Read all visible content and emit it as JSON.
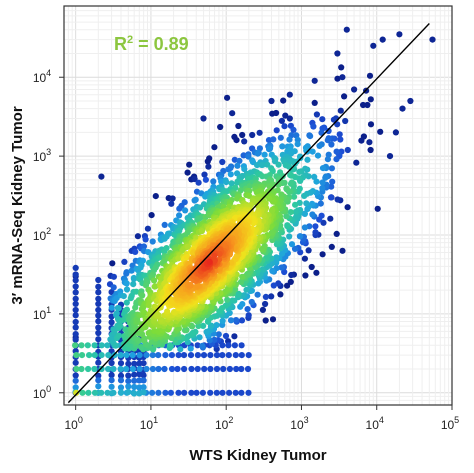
{
  "chart_data": {
    "type": "scatter",
    "title": "",
    "xlabel": "WTS Kidney Tumor",
    "ylabel": "3′ mRNA-Seq Kidney Tumor",
    "x_scale": "log",
    "y_scale": "log",
    "xlim": [
      0.7,
      100000
    ],
    "ylim": [
      0.7,
      80000
    ],
    "x_ticks": [
      {
        "base": "10",
        "exp": "0"
      },
      {
        "base": "10",
        "exp": "1"
      },
      {
        "base": "10",
        "exp": "2"
      },
      {
        "base": "10",
        "exp": "3"
      },
      {
        "base": "10",
        "exp": "4"
      },
      {
        "base": "10",
        "exp": "5"
      }
    ],
    "y_ticks": [
      {
        "base": "10",
        "exp": "0"
      },
      {
        "base": "10",
        "exp": "1"
      },
      {
        "base": "10",
        "exp": "2"
      },
      {
        "base": "10",
        "exp": "3"
      },
      {
        "base": "10",
        "exp": "4"
      }
    ],
    "annotation": {
      "label": "R",
      "sup": "2",
      "rest": " = 0.89",
      "color": "#8cc63f"
    },
    "grid": true,
    "density_colormap": [
      "#0b1f8a",
      "#1d4fd6",
      "#1fa3e0",
      "#2ec8a0",
      "#7ddc3a",
      "#f2e21c",
      "#f7931e",
      "#e8261c"
    ],
    "density_center": {
      "x": 60,
      "y": 45
    },
    "fit_line": {
      "x": [
        0.8,
        50000
      ],
      "y": [
        0.75,
        48000
      ]
    },
    "discrete_columns_x": [
      1,
      2,
      3,
      4,
      5,
      6,
      7,
      8
    ],
    "discrete_rows_y": [
      1,
      2,
      3,
      4
    ],
    "outliers": [
      {
        "x": 1,
        "y": 1
      },
      {
        "x": 2.2,
        "y": 550
      },
      {
        "x": 1,
        "y": 5
      },
      {
        "x": 1,
        "y": 30
      },
      {
        "x": 50,
        "y": 3000
      },
      {
        "x": 120,
        "y": 3500
      },
      {
        "x": 700,
        "y": 3000
      },
      {
        "x": 4000,
        "y": 40000
      },
      {
        "x": 3000,
        "y": 20000
      },
      {
        "x": 9000,
        "y": 25000
      },
      {
        "x": 12000,
        "y": 30000
      },
      {
        "x": 20000,
        "y": 35000
      },
      {
        "x": 55000,
        "y": 30000
      },
      {
        "x": 28000,
        "y": 5000
      },
      {
        "x": 22000,
        "y": 4000
      },
      {
        "x": 18000,
        "y": 2000
      },
      {
        "x": 3500,
        "y": 10000
      },
      {
        "x": 1500,
        "y": 9000
      },
      {
        "x": 700,
        "y": 6000
      },
      {
        "x": 400,
        "y": 5000
      },
      {
        "x": 5000,
        "y": 7000
      },
      {
        "x": 8000,
        "y": 1500
      },
      {
        "x": 15000,
        "y": 1000
      },
      {
        "x": 2500,
        "y": 300
      }
    ]
  }
}
